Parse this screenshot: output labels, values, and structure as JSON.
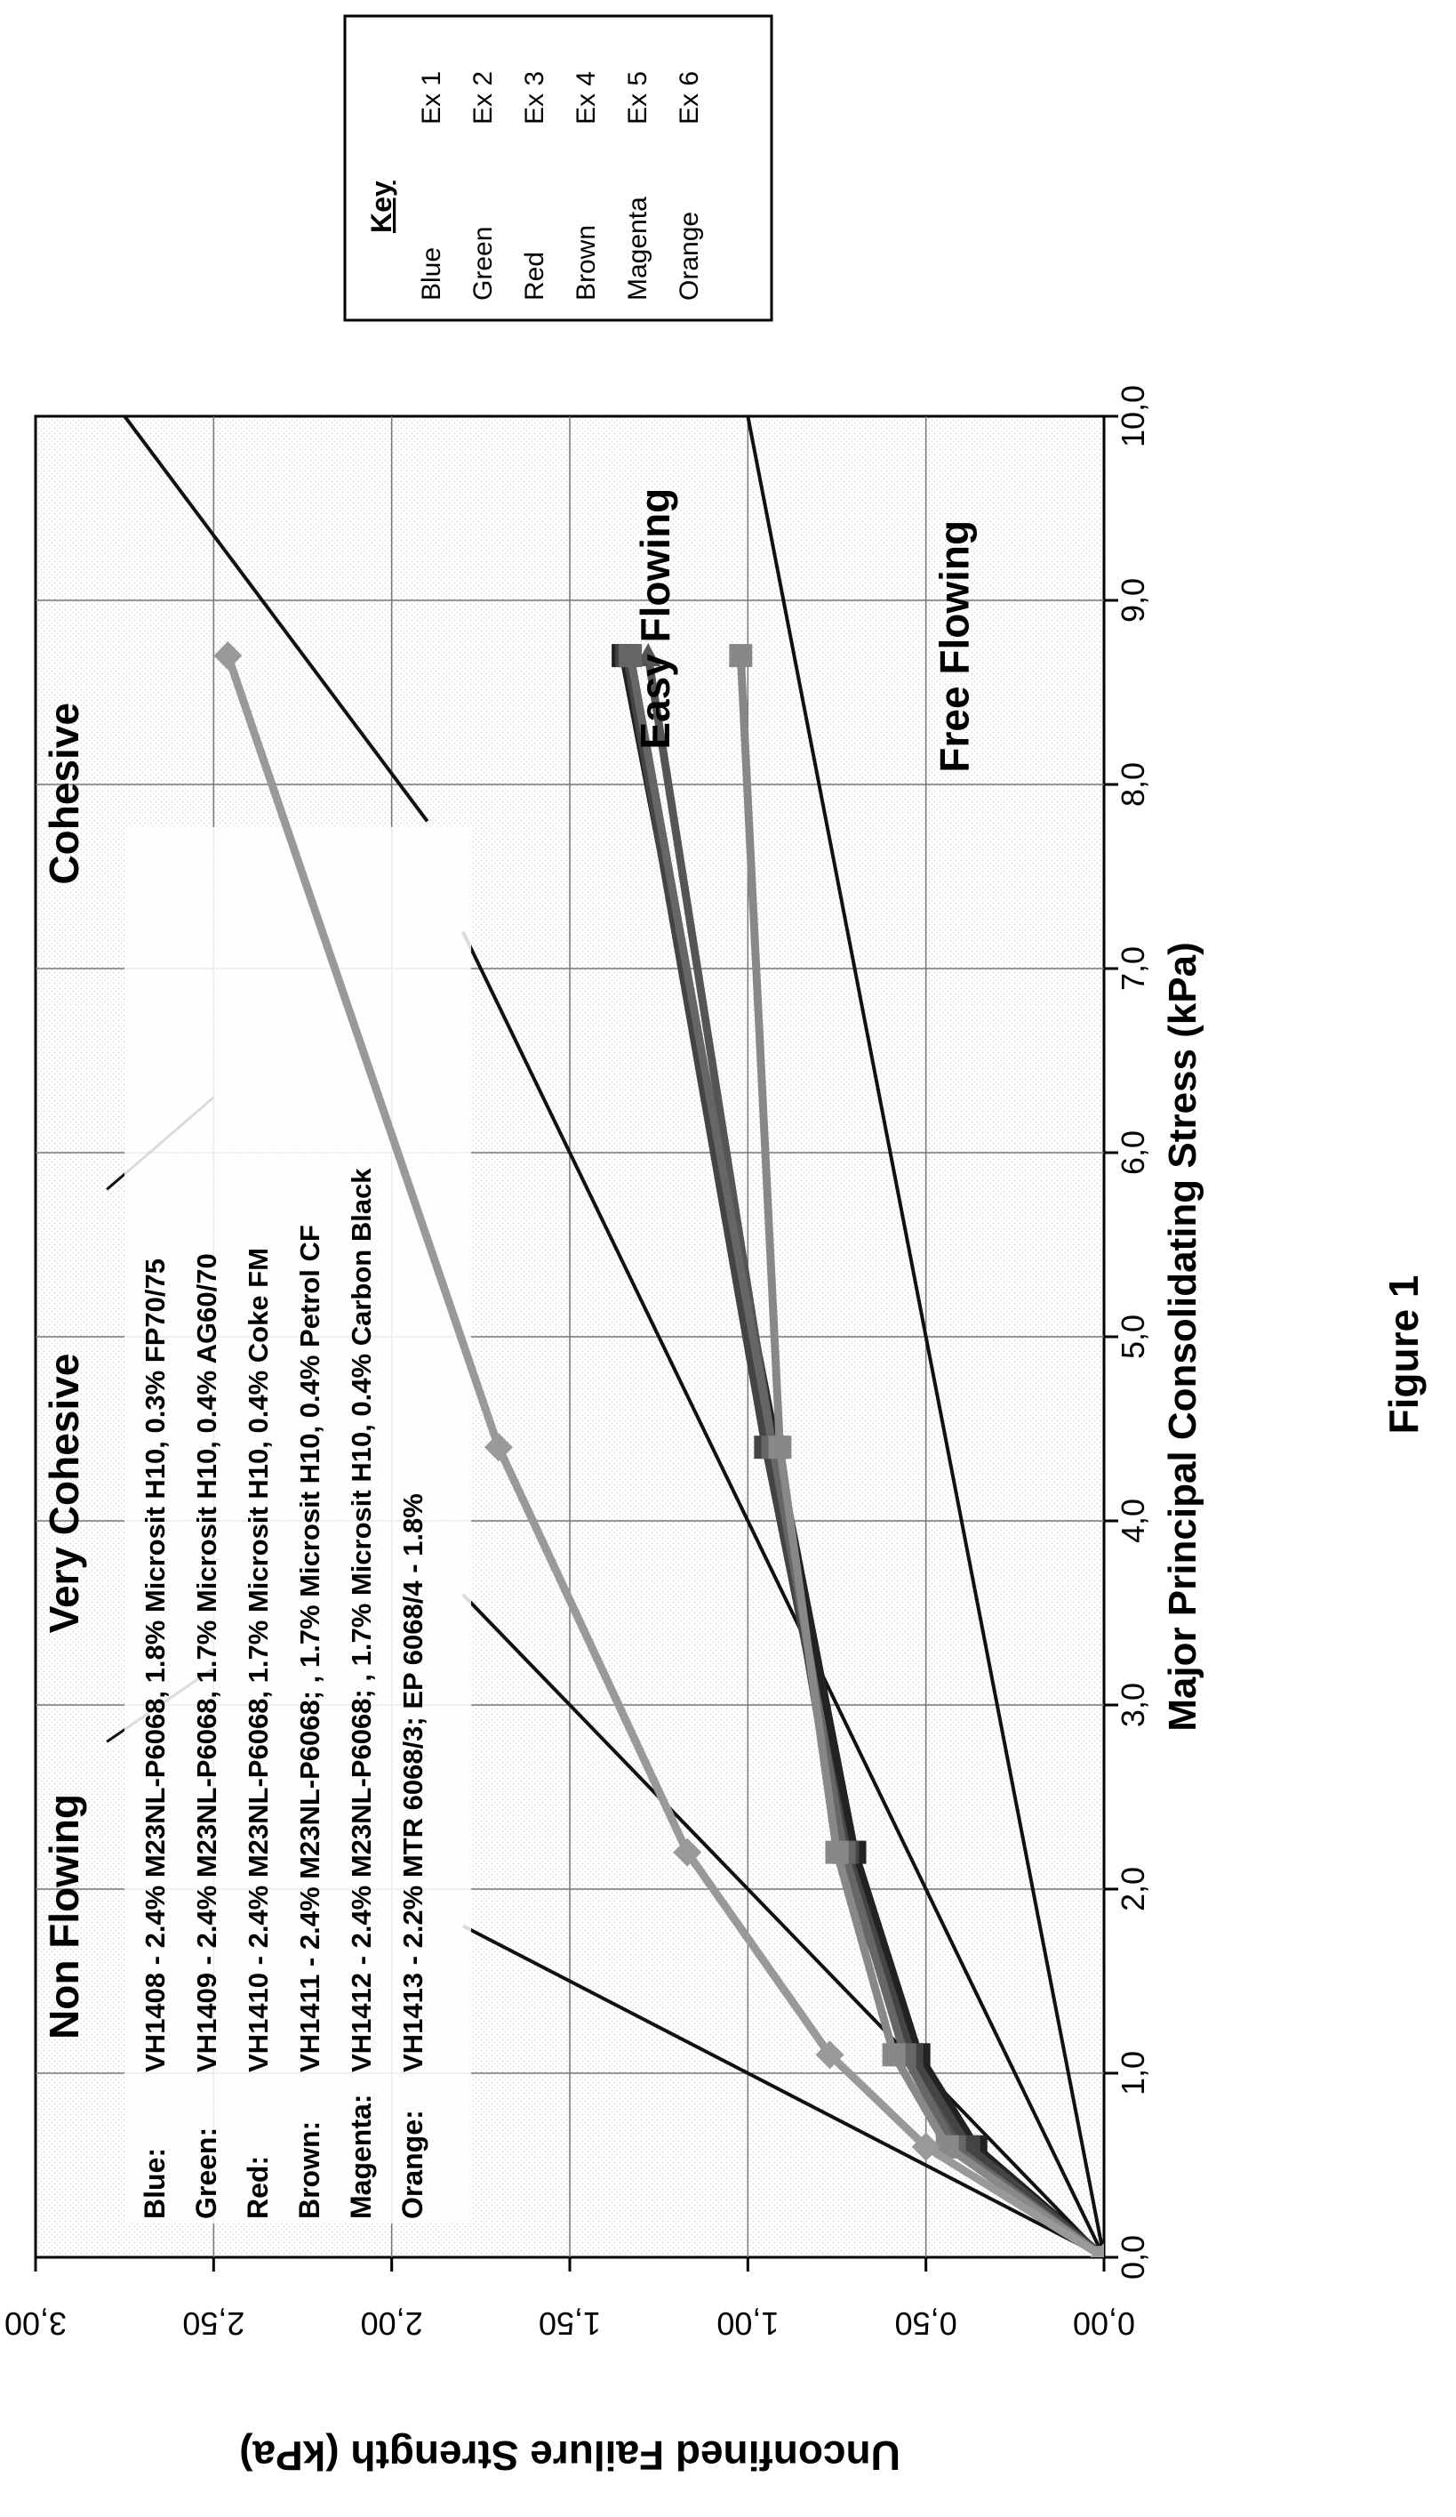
{
  "chart_data": {
    "type": "line",
    "xlabel": "Major Principal Consolidating Stress (kPa)",
    "ylabel": "Unconfined Failure Strength (kPa)",
    "xlim": [
      0,
      10
    ],
    "ylim": [
      0,
      3
    ],
    "x_tick_labels": [
      "0,0",
      "1,0",
      "2,0",
      "3,0",
      "4,0",
      "5,0",
      "6,0",
      "7,0",
      "8,0",
      "9,0",
      "10,0"
    ],
    "y_tick_labels": [
      "0,00",
      "0,50",
      "1,00",
      "1,50",
      "2,00",
      "2,50",
      "3,00"
    ],
    "grid": true,
    "region_labels": [
      "Non Flowing",
      "Very Cohesive",
      "Cohesive",
      "Easy Flowing",
      "Free Flowing"
    ],
    "flow_boundaries": [
      {
        "ffc": 1,
        "end": [
          1.8,
          1.8
        ]
      },
      {
        "ffc": 2,
        "end": [
          3.6,
          1.8
        ]
      },
      {
        "ffc": 4,
        "end": [
          7.2,
          1.8
        ]
      },
      {
        "ffc": 10,
        "end": [
          10.0,
          1.0
        ]
      }
    ],
    "composition_legend": [
      {
        "color_name": "Blue:",
        "text": "VH1408 - 2.4% M23NL-P6068, 1.8% Microsit H10, 0.3% FP70/75"
      },
      {
        "color_name": "Green:",
        "text": "VH1409 - 2.4% M23NL-P6068, 1.7% Microsit H10, 0.4% AG60/70"
      },
      {
        "color_name": "Red:",
        "text": "VH1410 - 2.4% M23NL-P6068, 1.7% Microsit H10, 0.4% Coke FM"
      },
      {
        "color_name": "Brown:",
        "text": "VH1411 - 2.4% M23NL-P6068; , 1.7% Microsit H10, 0.4% Petrol CF"
      },
      {
        "color_name": "Magenta:",
        "text": "VH1412 - 2.4% M23NL-P6068; , 1.7% Microsit H10, 0.4% Carbon Black"
      },
      {
        "color_name": "Orange:",
        "text": "VH1413 - 2.2% MTR 6068/3; EP 6068/4 - 1.8%"
      }
    ],
    "key": {
      "title": "Key",
      "rows": [
        {
          "color": "Blue",
          "example": "Ex 1"
        },
        {
          "color": "Green",
          "example": "Ex 2"
        },
        {
          "color": "Red",
          "example": "Ex 3"
        },
        {
          "color": "Brown",
          "example": "Ex 4"
        },
        {
          "color": "Magenta",
          "example": "Ex 5"
        },
        {
          "color": "Orange",
          "example": "Ex 6"
        }
      ]
    },
    "series": [
      {
        "marker": "square",
        "color": "#222222",
        "x": [
          0,
          0.6,
          1.1,
          2.2,
          4.4,
          8.7
        ],
        "y": [
          0,
          0.36,
          0.52,
          0.7,
          0.92,
          1.35
        ]
      },
      {
        "marker": "triangle",
        "color": "#555555",
        "x": [
          0,
          0.6,
          1.1,
          2.2,
          4.4,
          8.7
        ],
        "y": [
          0,
          0.4,
          0.55,
          0.74,
          0.93,
          1.28
        ]
      },
      {
        "marker": "square",
        "color": "#444444",
        "x": [
          0,
          0.6,
          1.1,
          2.2,
          4.4,
          8.7
        ],
        "y": [
          0,
          0.38,
          0.54,
          0.72,
          0.95,
          1.34
        ]
      },
      {
        "marker": "square",
        "color": "#666666",
        "x": [
          0,
          0.6,
          1.1,
          2.2,
          4.4,
          8.7
        ],
        "y": [
          0,
          0.42,
          0.56,
          0.73,
          0.93,
          1.33
        ]
      },
      {
        "marker": "square",
        "color": "#888888",
        "x": [
          0,
          0.6,
          1.1,
          2.2,
          4.4,
          8.7
        ],
        "y": [
          0,
          0.44,
          0.59,
          0.75,
          0.91,
          1.02
        ]
      },
      {
        "marker": "diamond",
        "color": "#999999",
        "x": [
          0,
          0.6,
          1.1,
          2.2,
          4.4,
          8.7
        ],
        "y": [
          0,
          0.5,
          0.77,
          1.17,
          1.7,
          2.46
        ]
      }
    ]
  },
  "figure_caption": "Figure 1"
}
